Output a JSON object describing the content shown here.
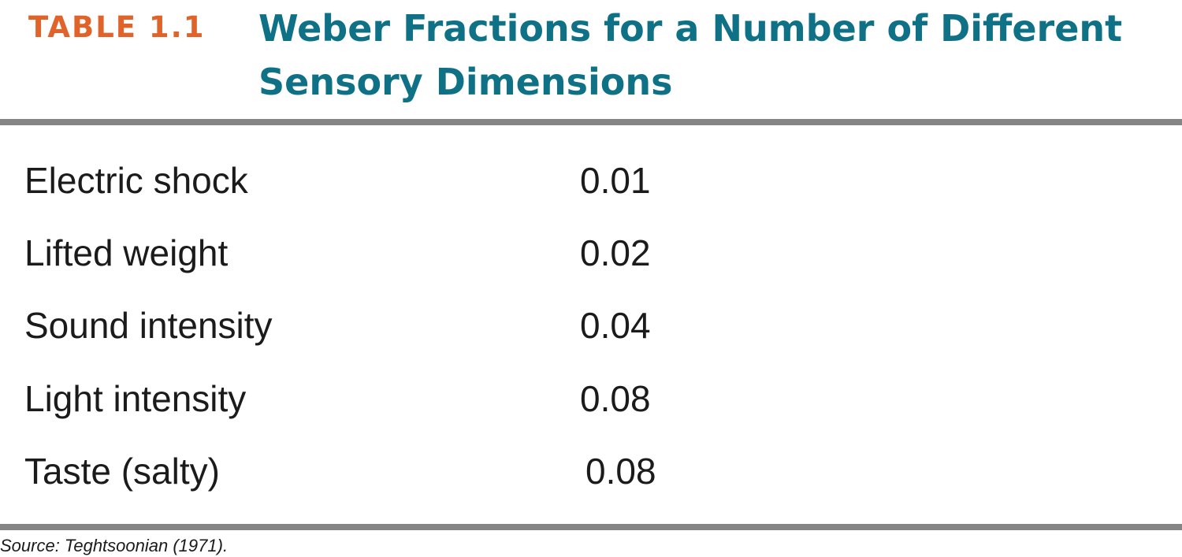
{
  "table": {
    "label": "TABLE 1.1",
    "title": "Weber Fractions for a Number of Different Sensory Dimensions",
    "rows": [
      {
        "dimension": "Electric shock",
        "weber_fraction": "0.01"
      },
      {
        "dimension": "Lifted weight",
        "weber_fraction": "0.02"
      },
      {
        "dimension": "Sound intensity",
        "weber_fraction": "0.04"
      },
      {
        "dimension": "Light intensity",
        "weber_fraction": "0.08"
      },
      {
        "dimension": "Taste (salty)",
        "weber_fraction": "0.08"
      }
    ],
    "source": "Source: Teghtsoonian (1971).",
    "colors": {
      "label": "#e0632a",
      "title": "#0f7186",
      "rule": "#858585",
      "text": "#1b1b1b"
    }
  }
}
